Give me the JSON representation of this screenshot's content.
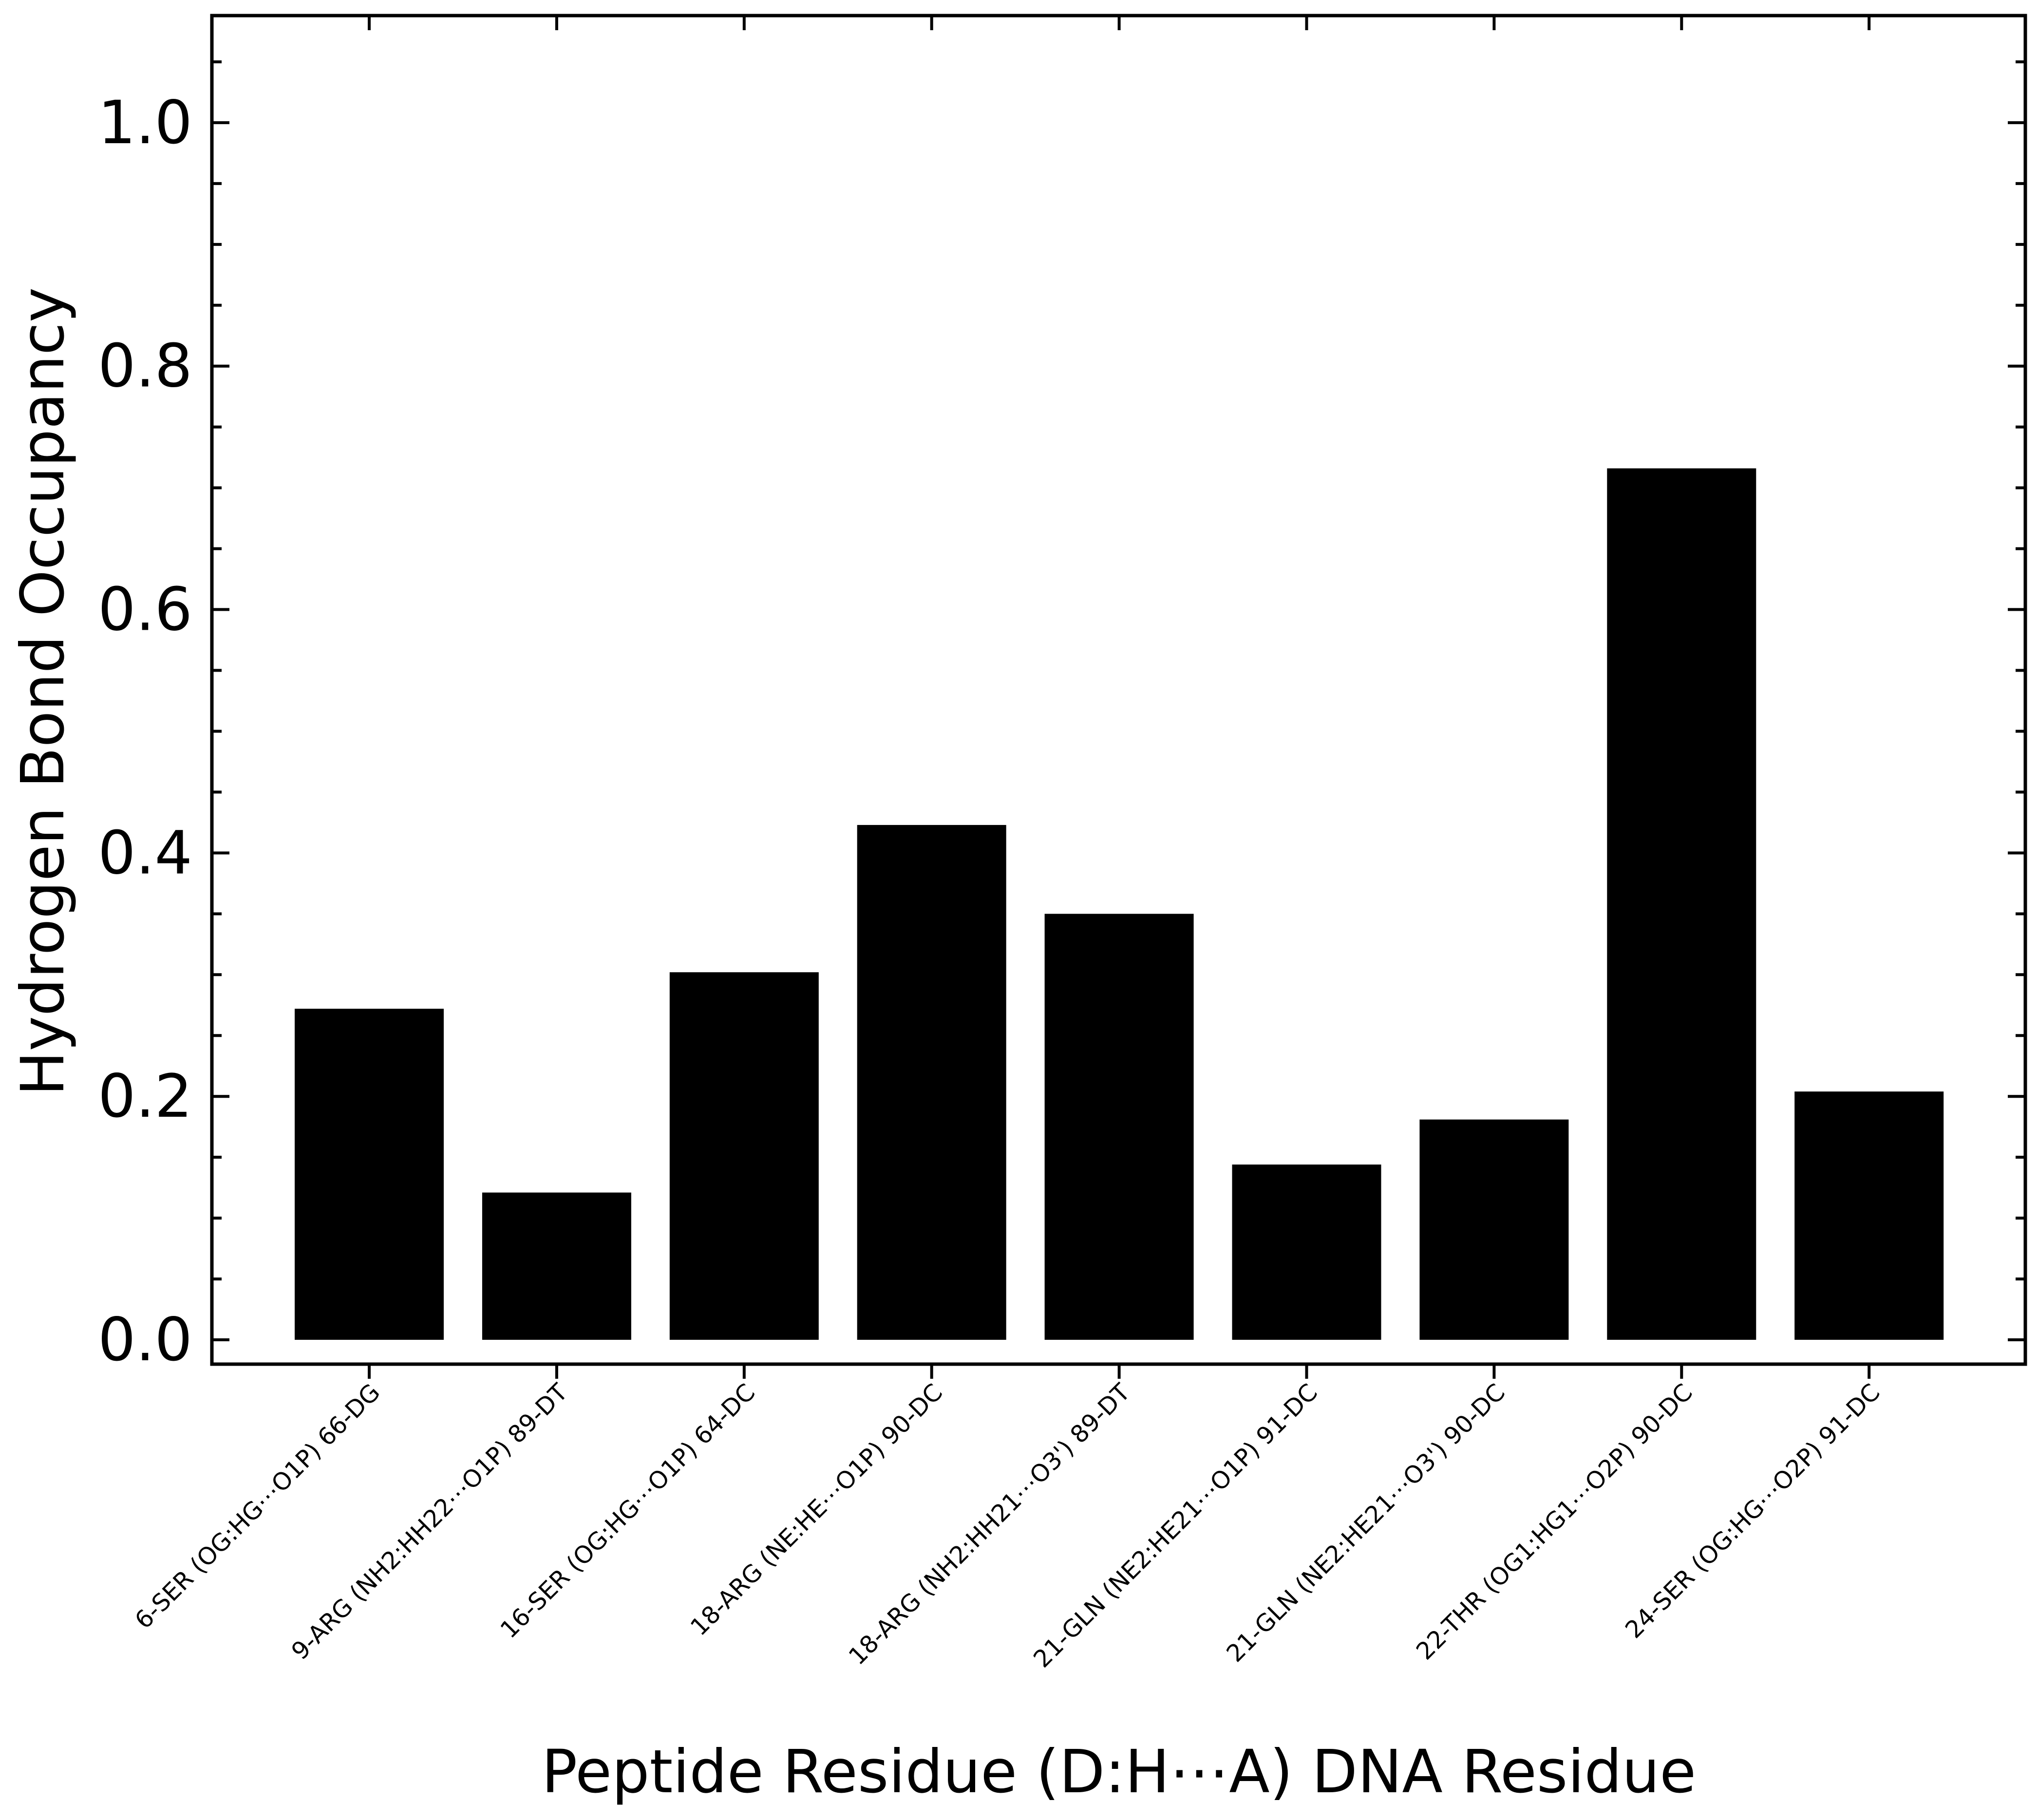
{
  "chart_data": {
    "type": "bar",
    "title": "",
    "xlabel": "Peptide Residue (D:H⋯A) DNA Residue",
    "ylabel": "Hydrogen Bond Occupancy",
    "categories": [
      "6-SER (OG:HG⋯O1P) 66-DG",
      "9-ARG (NH2:HH22⋯O1P) 89-DT",
      "16-SER (OG:HG⋯O1P) 64-DC",
      "18-ARG (NE:HE⋯O1P) 90-DC",
      "18-ARG (NH2:HH21⋯O3') 89-DT",
      "21-GLN (NE2:HE21⋯O1P) 91-DC",
      "21-GLN (NE2:HE21⋯O3') 90-DC",
      "22-THR (OG1:HG1⋯O2P) 90-DC",
      "24-SER (OG:HG⋯O2P) 91-DC"
    ],
    "values": [
      0.272,
      0.121,
      0.302,
      0.423,
      0.35,
      0.144,
      0.181,
      0.716,
      0.204
    ],
    "ylim": [
      -0.02,
      1.088
    ],
    "yticks": [
      0.0,
      0.2,
      0.4,
      0.6,
      0.8,
      1.0
    ],
    "ytick_labels": [
      "0.0",
      "0.2",
      "0.4",
      "0.6",
      "0.8",
      "1.0"
    ],
    "grid": false,
    "legend": "none",
    "bar_color": "#000000"
  }
}
